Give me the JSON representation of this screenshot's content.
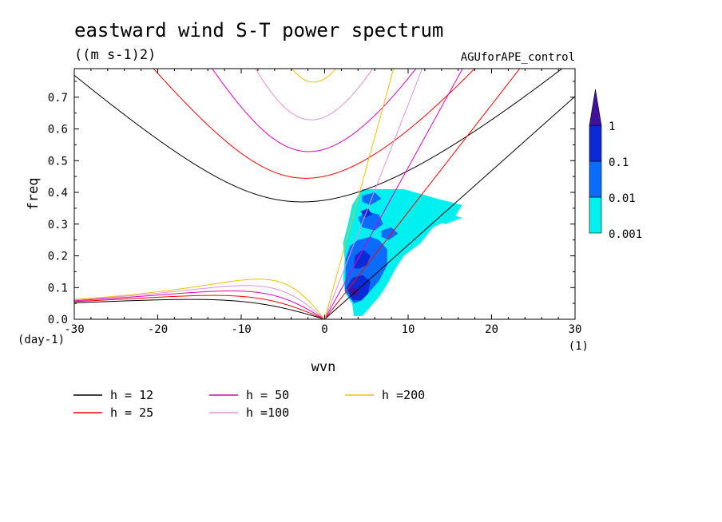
{
  "figure": {
    "title": "eastward wind S-T power spectrum",
    "units": "((m s-1)2)",
    "experiment": "AGUforAPE_control"
  },
  "chart_data": {
    "type": "heatmap",
    "title": "eastward wind S-T power spectrum",
    "subtitle": "((m s-1)2)",
    "xlabel": "wvn",
    "ylabel": "freq",
    "x_unit": "(1)",
    "y_unit": "(day-1)",
    "xlim": [
      -30,
      30
    ],
    "ylim": [
      0,
      0.79
    ],
    "xticks": [
      -30,
      -20,
      -10,
      0,
      10,
      20,
      30
    ],
    "yticks": [
      0.0,
      0.1,
      0.2,
      0.3,
      0.4,
      0.5,
      0.6,
      0.7
    ],
    "xtick_labels": [
      "-30",
      "-20",
      "-10",
      "0",
      "10",
      "20",
      "30"
    ],
    "ytick_labels": [
      "0.0",
      "0.1",
      "0.2",
      "0.3",
      "0.4",
      "0.5",
      "0.6",
      "0.7"
    ],
    "grid": false,
    "colorbar": {
      "levels": [
        0.001,
        0.01,
        0.1,
        1
      ],
      "labels": [
        "0.001",
        "0.01",
        "0.1",
        "1"
      ],
      "colors": [
        "#00f0f0",
        "#0a6cff",
        "#0a2ad8",
        "#4010a0"
      ]
    },
    "contours": [
      {
        "level": 0.001,
        "color": "#00f0f0",
        "polygons": [
          [
            [
              4.5,
              0.41
            ],
            [
              9.5,
              0.41
            ],
            [
              13.5,
              0.38
            ],
            [
              16.5,
              0.36
            ],
            [
              15.5,
              0.32
            ],
            [
              13,
              0.29
            ],
            [
              11.5,
              0.24
            ],
            [
              9.5,
              0.2
            ],
            [
              8.5,
              0.16
            ],
            [
              7.5,
              0.11
            ],
            [
              6.5,
              0.07
            ],
            [
              5.5,
              0.04
            ],
            [
              4.5,
              0.01
            ],
            [
              3.5,
              0.01
            ],
            [
              3.3,
              0.05
            ],
            [
              2.5,
              0.08
            ],
            [
              2.2,
              0.13
            ],
            [
              2.4,
              0.19
            ],
            [
              2.2,
              0.24
            ],
            [
              2.8,
              0.3
            ],
            [
              3.3,
              0.36
            ],
            [
              4,
              0.39
            ]
          ],
          [
            [
              10.3,
              0.38
            ],
            [
              12.5,
              0.37
            ],
            [
              13.5,
              0.36
            ],
            [
              12,
              0.33
            ],
            [
              10.5,
              0.34
            ]
          ],
          [
            [
              13,
              0.34
            ],
            [
              15,
              0.33
            ],
            [
              16.5,
              0.32
            ],
            [
              14.5,
              0.3
            ],
            [
              13,
              0.31
            ]
          ]
        ]
      },
      {
        "level": 0.01,
        "color": "#0a6cff",
        "polygons": [
          [
            [
              3.5,
              0.05
            ],
            [
              2.4,
              0.09
            ],
            [
              2.5,
              0.13
            ],
            [
              2.5,
              0.19
            ],
            [
              3,
              0.23
            ],
            [
              4,
              0.25
            ],
            [
              5.5,
              0.26
            ],
            [
              6.5,
              0.25
            ],
            [
              7.5,
              0.22
            ],
            [
              7.5,
              0.17
            ],
            [
              6.5,
              0.12
            ],
            [
              5.5,
              0.09
            ],
            [
              4.5,
              0.06
            ]
          ],
          [
            [
              4,
              0.32
            ],
            [
              5,
              0.34
            ],
            [
              6.5,
              0.33
            ],
            [
              7,
              0.3
            ],
            [
              6,
              0.28
            ],
            [
              4.5,
              0.29
            ]
          ],
          [
            [
              4.5,
              0.39
            ],
            [
              6,
              0.4
            ],
            [
              6.8,
              0.38
            ],
            [
              5.5,
              0.36
            ],
            [
              4.5,
              0.37
            ]
          ],
          [
            [
              6.8,
              0.28
            ],
            [
              8,
              0.29
            ],
            [
              8.8,
              0.27
            ],
            [
              7.7,
              0.25
            ],
            [
              6.8,
              0.26
            ]
          ]
        ]
      },
      {
        "level": 0.1,
        "color": "#0a2ad8",
        "polygons": [
          [
            [
              3.3,
              0.06
            ],
            [
              2.6,
              0.1
            ],
            [
              3.3,
              0.13
            ],
            [
              4.5,
              0.14
            ],
            [
              5.5,
              0.12
            ],
            [
              5.2,
              0.08
            ],
            [
              4.3,
              0.06
            ]
          ],
          [
            [
              3.5,
              0.16
            ],
            [
              3.6,
              0.2
            ],
            [
              4.6,
              0.22
            ],
            [
              5.5,
              0.2
            ],
            [
              5,
              0.17
            ],
            [
              4.2,
              0.16
            ]
          ],
          [
            [
              4.3,
              0.34
            ],
            [
              5.2,
              0.35
            ],
            [
              5.7,
              0.33
            ],
            [
              4.8,
              0.32
            ]
          ]
        ]
      },
      {
        "level": 1,
        "color": "#4010a0",
        "polygons": [
          [
            [
              3.2,
              0.075
            ],
            [
              2.9,
              0.09
            ],
            [
              3.4,
              0.1
            ],
            [
              4,
              0.095
            ],
            [
              4.1,
              0.08
            ],
            [
              3.6,
              0.072
            ]
          ]
        ]
      }
    ],
    "dispersion_curves": [
      {
        "h": 12,
        "label": "h = 12",
        "color": "#000000"
      },
      {
        "h": 25,
        "label": "h = 25",
        "color": "#ff0000"
      },
      {
        "h": 50,
        "label": "h = 50",
        "color": "#e000c0"
      },
      {
        "h": 100,
        "label": "h =100",
        "color": "#e090e0"
      },
      {
        "h": 200,
        "label": "h =200",
        "color": "#f0c000"
      }
    ],
    "legend_position": "bottom"
  }
}
